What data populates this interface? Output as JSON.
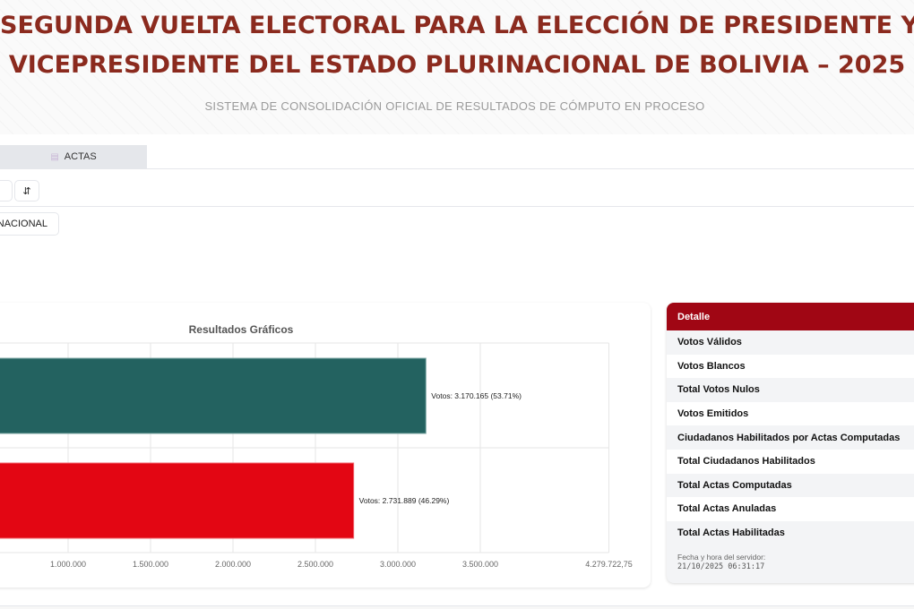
{
  "header": {
    "title_line1": "SEGUNDA VUELTA ELECTORAL PARA LA ELECCIÓN DE PRESIDENTE Y",
    "title_line2": "VICEPRESIDENTE DEL ESTADO PLURINACIONAL DE BOLIVIA – 2025",
    "subtitle": "SISTEMA DE CONSOLIDACIÓN OFICIAL DE RESULTADOS DE CÓMPUTO EN PROCESO",
    "title_color": "#8b2a1e"
  },
  "tabs": [
    {
      "label": "ACTAS",
      "icon": "document-icon"
    }
  ],
  "toolbar": {
    "sort_icon": "⇵",
    "scope_label": "NACIONAL"
  },
  "chart_data": {
    "type": "bar",
    "orientation": "horizontal",
    "title": "Resultados Gráficos",
    "series": [
      {
        "values": [
          3170165,
          2731889
        ],
        "colors": [
          "#236260",
          "#e30613"
        ]
      }
    ],
    "data_labels": [
      "Votos: 3.170.165 (53.71%)",
      "Votos: 2.731.889 (46.29%)"
    ],
    "xlim": [
      0,
      4279722.75
    ],
    "x_ticks": [
      {
        "value": 1000000,
        "label": "1.000.000"
      },
      {
        "value": 1500000,
        "label": "1.500.000"
      },
      {
        "value": 2000000,
        "label": "2.000.000"
      },
      {
        "value": 2500000,
        "label": "2.500.000"
      },
      {
        "value": 3000000,
        "label": "3.000.000"
      },
      {
        "value": 3500000,
        "label": "3.500.000"
      },
      {
        "value": 4279722.75,
        "label": "4.279.722,75"
      }
    ],
    "grid": true
  },
  "detail": {
    "header": "Detalle",
    "header_color": "#a00614",
    "rows": [
      "Votos Válidos",
      "Votos Blancos",
      "Total Votos Nulos",
      "Votos Emitidos",
      "Ciudadanos Habilitados por Actas Computadas",
      "Total Ciudadanos Habilitados",
      "Total Actas Computadas",
      "Total Actas Anuladas",
      "Total Actas Habilitadas"
    ],
    "server_time_label": "Fecha y hora del servidor:",
    "server_time": "21/10/2025 06:31:17"
  }
}
